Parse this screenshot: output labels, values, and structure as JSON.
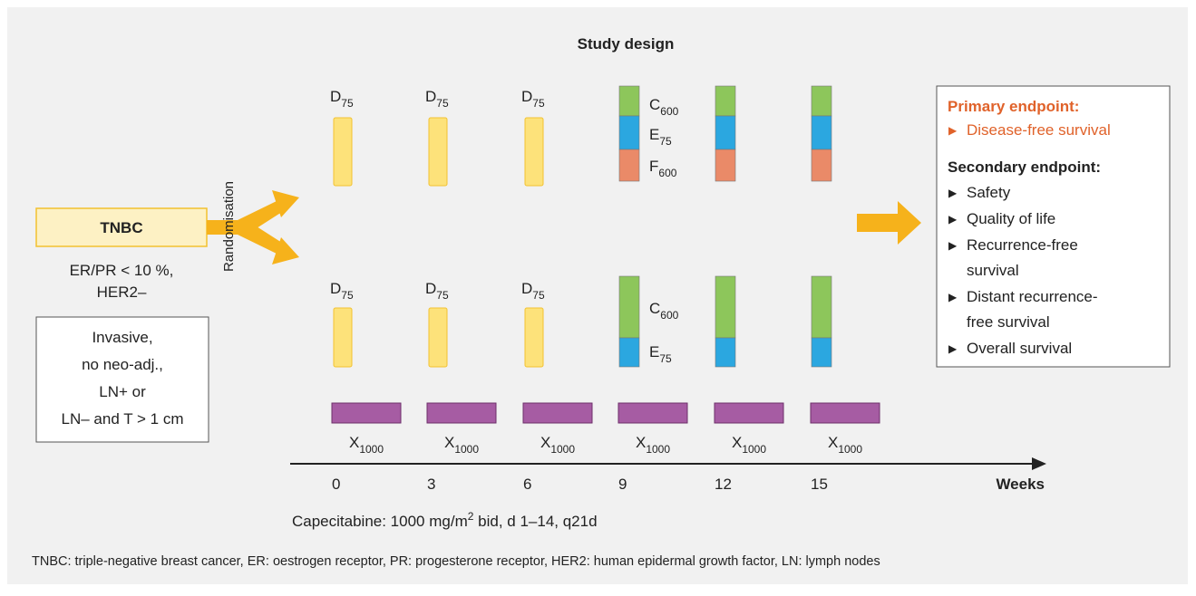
{
  "title": "Study design",
  "patient": {
    "label": "TNBC",
    "criteria": [
      "ER/PR < 10 %,",
      "HER2–"
    ],
    "inclusion": [
      "Invasive,",
      "no neo-adj.,",
      "LN+ or",
      "LN– and T > 1 cm"
    ]
  },
  "randomisation": "Randomisation",
  "arms": [
    {
      "taxane": [
        {
          "base": "D",
          "sub": "75"
        },
        {
          "base": "D",
          "sub": "75"
        },
        {
          "base": "D",
          "sub": "75"
        }
      ],
      "combo": [
        {
          "base": "C",
          "sub": "600"
        },
        {
          "base": "E",
          "sub": "75"
        },
        {
          "base": "F",
          "sub": "600"
        }
      ]
    },
    {
      "taxane": [
        {
          "base": "D",
          "sub": "75"
        },
        {
          "base": "D",
          "sub": "75"
        },
        {
          "base": "D",
          "sub": "75"
        }
      ],
      "combo": [
        {
          "base": "C",
          "sub": "600"
        },
        {
          "base": "E",
          "sub": "75"
        }
      ]
    }
  ],
  "capecitabine_cycles": [
    {
      "base": "X",
      "sub": "1000"
    },
    {
      "base": "X",
      "sub": "1000"
    },
    {
      "base": "X",
      "sub": "1000"
    },
    {
      "base": "X",
      "sub": "1000"
    },
    {
      "base": "X",
      "sub": "1000"
    },
    {
      "base": "X",
      "sub": "1000"
    }
  ],
  "axis": {
    "ticks": [
      0,
      3,
      6,
      9,
      12,
      15
    ],
    "label": "Weeks"
  },
  "capecitabine_note": {
    "text": "Capecitabine: 1000 mg/m",
    "sup": "2",
    "rest": " bid, d 1–14, q21d"
  },
  "endpoints": {
    "primary_title": "Primary endpoint:",
    "primary": [
      [
        "Disease-free survival"
      ]
    ],
    "secondary_title": "Secondary endpoint:",
    "secondary": [
      [
        "Safety"
      ],
      [
        "Quality of life"
      ],
      [
        "Recurrence-free",
        "survival"
      ],
      [
        "Distant recurrence-",
        "free survival"
      ],
      [
        "Overall survival"
      ]
    ]
  },
  "footnote": "TNBC: triple-negative breast cancer, ER: oestrogen receptor, PR: progesterone receptor, HER2: human epidermal growth factor, LN: lymph nodes"
}
